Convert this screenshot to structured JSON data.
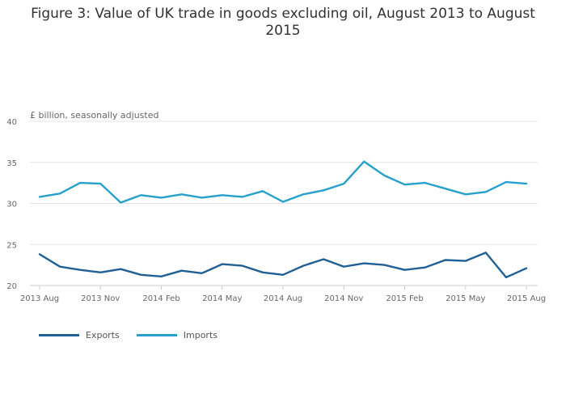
{
  "chart_data": {
    "type": "line",
    "title": "Figure 3: Value of UK trade in goods excluding oil, August 2013 to August 2015",
    "ylabel": "£ billion, seasonally adjusted",
    "xlabel": "",
    "ylim": [
      20,
      40
    ],
    "yticks": [
      20,
      25,
      30,
      35,
      40
    ],
    "grid": true,
    "legend_position": "bottom-left",
    "x": [
      "2013 Aug",
      "2013 Sep",
      "2013 Oct",
      "2013 Nov",
      "2013 Dec",
      "2014 Jan",
      "2014 Feb",
      "2014 Mar",
      "2014 Apr",
      "2014 May",
      "2014 Jun",
      "2014 Jul",
      "2014 Aug",
      "2014 Sep",
      "2014 Oct",
      "2014 Nov",
      "2014 Dec",
      "2015 Jan",
      "2015 Feb",
      "2015 Mar",
      "2015 Apr",
      "2015 May",
      "2015 Jun",
      "2015 Jul",
      "2015 Aug"
    ],
    "xtick_labels": [
      "2013 Aug",
      "2013 Nov",
      "2014 Feb",
      "2014 May",
      "2014 Aug",
      "2014 Nov",
      "2015 Feb",
      "2015 May",
      "2015 Aug"
    ],
    "series": [
      {
        "name": "Exports",
        "color": "#206095",
        "values": [
          23.8,
          22.3,
          21.9,
          21.6,
          22.0,
          21.3,
          21.1,
          21.8,
          21.5,
          22.6,
          22.4,
          21.6,
          21.3,
          22.4,
          23.2,
          22.3,
          22.7,
          22.5,
          21.9,
          22.2,
          23.1,
          23.0,
          24.0,
          21.0,
          22.1
        ]
      },
      {
        "name": "Imports",
        "color": "#27A0CC",
        "values": [
          30.8,
          31.2,
          32.5,
          32.4,
          30.1,
          31.0,
          30.7,
          31.1,
          30.7,
          31.0,
          30.8,
          31.5,
          30.2,
          31.1,
          31.6,
          32.4,
          35.1,
          33.4,
          32.3,
          32.5,
          31.8,
          31.1,
          31.4,
          32.6,
          32.4
        ]
      }
    ]
  }
}
